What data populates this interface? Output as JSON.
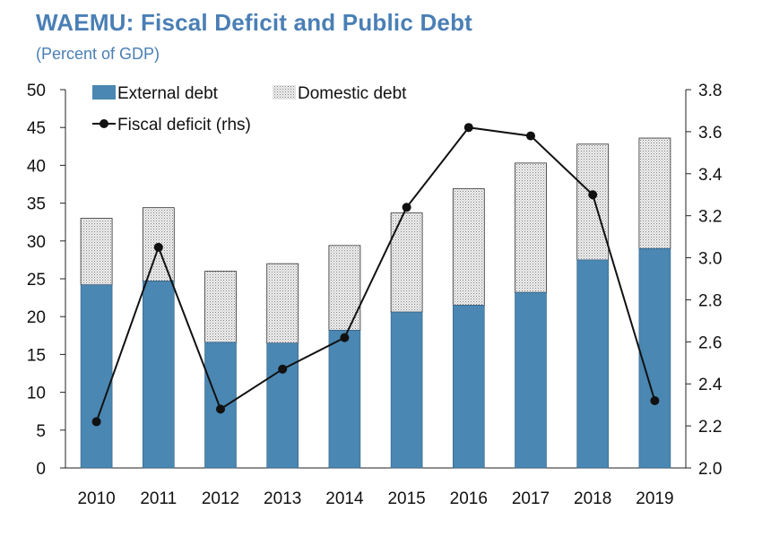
{
  "title": "WAEMU: Fiscal Deficit and Public Debt",
  "subtitle": "(Percent of GDP)",
  "colors": {
    "title": "#4a7fb5",
    "external_debt": "#4a87b2",
    "domestic_debt_bg": "#f2f2f2",
    "domestic_debt_dots": "#7a7a7a",
    "line": "#111111"
  },
  "chart_data": {
    "type": "bar",
    "stacked": true,
    "categories": [
      "2010",
      "2011",
      "2012",
      "2013",
      "2014",
      "2015",
      "2016",
      "2017",
      "2018",
      "2019"
    ],
    "series": [
      {
        "name": "External debt",
        "axis": "left",
        "values": [
          24.2,
          24.7,
          16.6,
          16.5,
          18.2,
          20.6,
          21.5,
          23.2,
          27.5,
          29.0
        ]
      },
      {
        "name": "Domestic debt",
        "axis": "left",
        "values": [
          8.8,
          9.7,
          9.4,
          10.5,
          11.2,
          13.1,
          15.4,
          17.1,
          15.3,
          14.6
        ]
      }
    ],
    "line_series": {
      "name": "Fiscal deficit (rhs)",
      "type": "line",
      "axis": "right",
      "values": [
        2.22,
        3.05,
        2.28,
        2.47,
        2.62,
        3.24,
        3.62,
        3.58,
        3.3,
        2.32
      ]
    },
    "ylim": [
      0,
      50
    ],
    "yticks": [
      "0",
      "5",
      "10",
      "15",
      "20",
      "25",
      "30",
      "35",
      "40",
      "45",
      "50"
    ],
    "y2lim": [
      2.0,
      3.8
    ],
    "y2ticks": [
      "2.0",
      "2.2",
      "2.4",
      "2.6",
      "2.8",
      "3.0",
      "3.2",
      "3.4",
      "3.6",
      "3.8"
    ],
    "legend": [
      "External debt",
      "Domestic debt",
      "Fiscal deficit (rhs)"
    ],
    "legend_position": "top-left",
    "grid": false
  }
}
